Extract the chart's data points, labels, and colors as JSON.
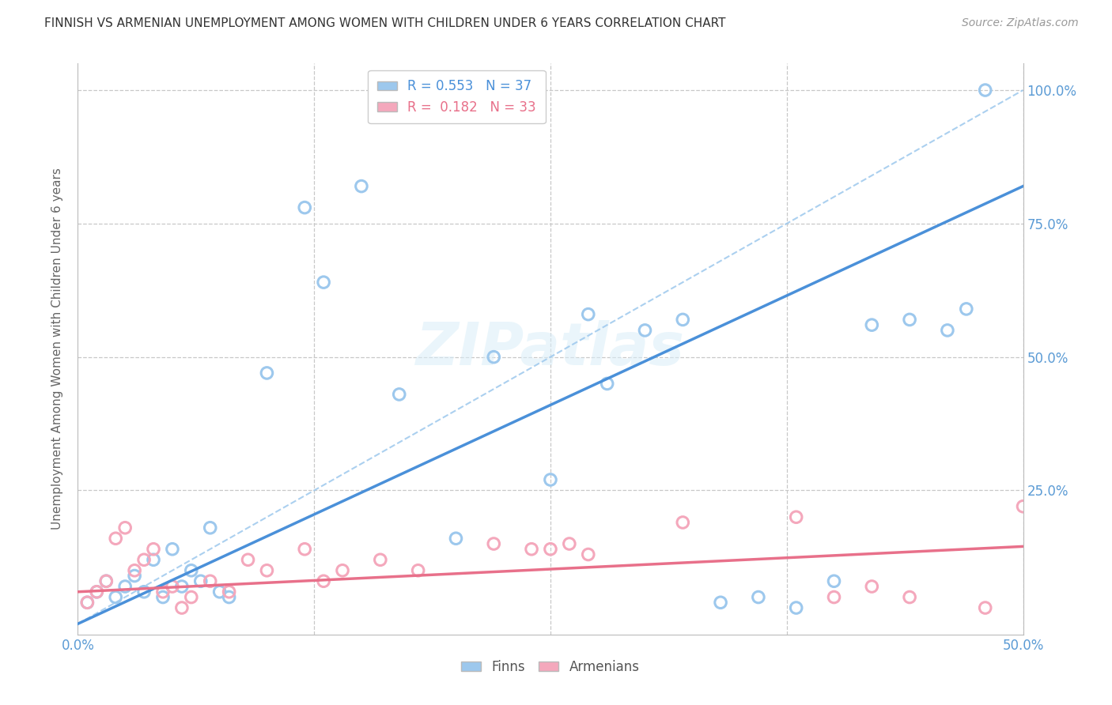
{
  "title": "FINNISH VS ARMENIAN UNEMPLOYMENT AMONG WOMEN WITH CHILDREN UNDER 6 YEARS CORRELATION CHART",
  "source": "Source: ZipAtlas.com",
  "ylabel": "Unemployment Among Women with Children Under 6 years",
  "xlim": [
    0.0,
    0.5
  ],
  "ylim": [
    -0.02,
    1.05
  ],
  "finns_x": [
    0.005,
    0.01,
    0.015,
    0.02,
    0.025,
    0.03,
    0.035,
    0.04,
    0.045,
    0.05,
    0.055,
    0.06,
    0.065,
    0.07,
    0.075,
    0.08,
    0.1,
    0.12,
    0.13,
    0.15,
    0.17,
    0.2,
    0.22,
    0.25,
    0.27,
    0.28,
    0.3,
    0.32,
    0.34,
    0.36,
    0.38,
    0.4,
    0.42,
    0.44,
    0.46,
    0.47,
    0.48
  ],
  "finns_y": [
    0.04,
    0.06,
    0.08,
    0.05,
    0.07,
    0.09,
    0.06,
    0.12,
    0.05,
    0.14,
    0.07,
    0.1,
    0.08,
    0.18,
    0.06,
    0.05,
    0.47,
    0.78,
    0.64,
    0.82,
    0.43,
    0.16,
    0.5,
    0.27,
    0.58,
    0.45,
    0.55,
    0.57,
    0.04,
    0.05,
    0.03,
    0.08,
    0.56,
    0.57,
    0.55,
    0.59,
    1.0
  ],
  "armenians_x": [
    0.005,
    0.01,
    0.015,
    0.02,
    0.025,
    0.03,
    0.035,
    0.04,
    0.045,
    0.05,
    0.055,
    0.06,
    0.07,
    0.08,
    0.09,
    0.1,
    0.12,
    0.13,
    0.14,
    0.16,
    0.18,
    0.22,
    0.24,
    0.25,
    0.26,
    0.27,
    0.32,
    0.38,
    0.4,
    0.42,
    0.44,
    0.48,
    0.5
  ],
  "armenians_y": [
    0.04,
    0.06,
    0.08,
    0.16,
    0.18,
    0.1,
    0.12,
    0.14,
    0.06,
    0.07,
    0.03,
    0.05,
    0.08,
    0.06,
    0.12,
    0.1,
    0.14,
    0.08,
    0.1,
    0.12,
    0.1,
    0.15,
    0.14,
    0.14,
    0.15,
    0.13,
    0.19,
    0.2,
    0.05,
    0.07,
    0.05,
    0.03,
    0.22
  ],
  "finn_color": "#9DC8ED",
  "armenian_color": "#F4A8BC",
  "finn_line_color": "#4A90D9",
  "armenian_line_color": "#E8708A",
  "finn_R": 0.553,
  "finn_N": 37,
  "armenian_R": 0.182,
  "armenian_N": 33,
  "finn_line_x0": 0.0,
  "finn_line_y0": 0.0,
  "finn_line_x1": 0.5,
  "finn_line_y1": 0.82,
  "arm_line_x0": 0.0,
  "arm_line_y0": 0.06,
  "arm_line_x1": 0.5,
  "arm_line_y1": 0.145,
  "dash_line_x0": 0.0,
  "dash_line_y0": 0.0,
  "dash_line_x1": 0.5,
  "dash_line_y1": 1.0,
  "watermark": "ZIPatlas",
  "background_color": "#FFFFFF",
  "grid_color": "#C8C8C8",
  "axis_label_color": "#5B9BD5",
  "marker_size": 110
}
